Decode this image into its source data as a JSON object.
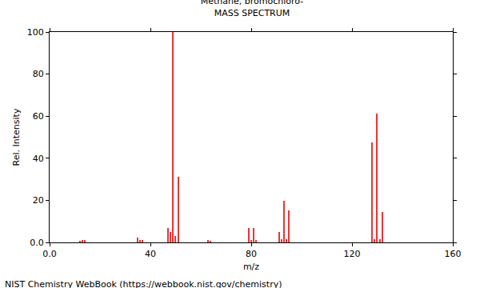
{
  "chart_data": {
    "type": "bar",
    "title": "Methane, bromochloro-",
    "subtitle": "MASS SPECTRUM",
    "x_label": "m/z",
    "y_label": "Rel. Intensity",
    "annotations": [
      "NIST Chemistry WebBook (https://webbook.nist.gov/chemistry)"
    ],
    "x": [
      12,
      13,
      14,
      35,
      36,
      37,
      47,
      48,
      49,
      50,
      51,
      63,
      64,
      79,
      80,
      81,
      82,
      91,
      92,
      93,
      94,
      95,
      128,
      129,
      130,
      131,
      132
    ],
    "values": [
      0.5,
      1,
      1,
      2.3,
      1,
      1,
      6.8,
      4.9,
      100,
      3,
      31.2,
      1,
      0.8,
      6.8,
      1.2,
      6.8,
      1.2,
      5,
      1.5,
      19.8,
      1.5,
      15.2,
      47.5,
      1.5,
      61.2,
      1.5,
      14.4
    ],
    "color": "#ee3333",
    "xlim": [
      0,
      160
    ],
    "xticks": [
      {
        "value": 0,
        "label": "0.0"
      },
      40,
      80,
      120,
      160
    ],
    "ylim": [
      0,
      100
    ],
    "yticks": [
      {
        "value": 0,
        "label": "0.0"
      },
      20,
      40,
      60,
      80,
      100
    ],
    "grid": false
  }
}
